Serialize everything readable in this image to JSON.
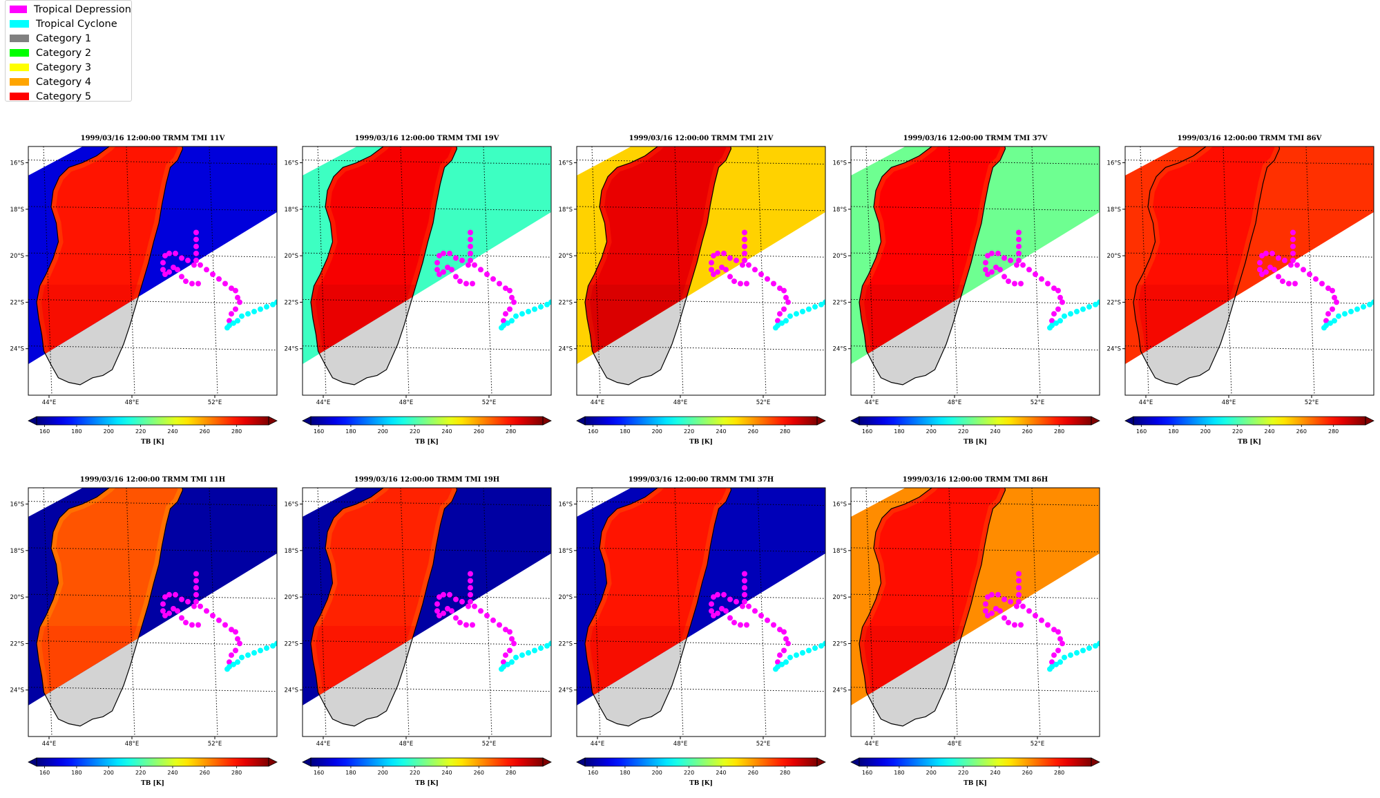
{
  "legend": {
    "items": [
      {
        "label": "Tropical Depression",
        "color": "#ff00ff"
      },
      {
        "label": "Tropical Cyclone",
        "color": "#00ffff"
      },
      {
        "label": "Category 1",
        "color": "#808080"
      },
      {
        "label": "Category 2",
        "color": "#00ff00"
      },
      {
        "label": "Category 3",
        "color": "#ffff00"
      },
      {
        "label": "Category 4",
        "color": "#ffa500"
      },
      {
        "label": "Category 5",
        "color": "#ff0000"
      }
    ]
  },
  "chart_data": [
    {
      "type": "heatmap",
      "title": "1999/03/16 12:00:00  TRMM TMI 11V",
      "channel": "11V",
      "ocean_tb": 168,
      "land_tb": 279,
      "colorbar_label": "TB [K]"
    },
    {
      "type": "heatmap",
      "title": "1999/03/16 12:00:00  TRMM TMI 19V",
      "channel": "19V",
      "ocean_tb": 218,
      "land_tb": 283,
      "colorbar_label": "TB [K]"
    },
    {
      "type": "heatmap",
      "title": "1999/03/16 12:00:00  TRMM TMI 21V",
      "channel": "21V",
      "ocean_tb": 252,
      "land_tb": 285,
      "colorbar_label": "TB [K]"
    },
    {
      "type": "heatmap",
      "title": "1999/03/16 12:00:00  TRMM TMI 37V",
      "channel": "37V",
      "ocean_tb": 225,
      "land_tb": 282,
      "colorbar_label": "TB [K]"
    },
    {
      "type": "heatmap",
      "title": "1999/03/16 12:00:00  TRMM TMI 86V",
      "channel": "86V",
      "ocean_tb": 275,
      "land_tb": 280,
      "colorbar_label": "TB [K]"
    },
    {
      "type": "heatmap",
      "title": "1999/03/16 12:00:00  TRMM TMI 11H",
      "channel": "11H",
      "ocean_tb": 160,
      "land_tb": 270,
      "colorbar_label": "TB [K]"
    },
    {
      "type": "heatmap",
      "title": "1999/03/16 12:00:00  TRMM TMI 19H",
      "channel": "19H",
      "ocean_tb": 160,
      "land_tb": 277,
      "colorbar_label": "TB [K]"
    },
    {
      "type": "heatmap",
      "title": "1999/03/16 12:00:00  TRMM TMI 37H",
      "channel": "37H",
      "ocean_tb": 163,
      "land_tb": 279,
      "colorbar_label": "TB [K]"
    },
    {
      "type": "heatmap",
      "title": "1999/03/16 12:00:00  TRMM TMI 86H",
      "channel": "86H",
      "ocean_tb": 262,
      "land_tb": 280,
      "colorbar_label": "TB [K]"
    }
  ],
  "axes": {
    "lon_range": [
      43.0,
      55.0
    ],
    "lat_range": [
      -26.0,
      -15.3
    ],
    "lon_ticks": [
      "44°E",
      "48°E",
      "52°E"
    ],
    "lon_tick_values": [
      44,
      48,
      52
    ],
    "lat_ticks": [
      "16°S",
      "18°S",
      "20°S",
      "22°S",
      "24°S"
    ],
    "lat_tick_values": [
      -16,
      -18,
      -20,
      -22,
      -24
    ],
    "grid": true
  },
  "colorbar": {
    "ticks": [
      "160",
      "180",
      "200",
      "220",
      "240",
      "260",
      "280"
    ],
    "tick_values": [
      160,
      180,
      200,
      220,
      240,
      260,
      280
    ],
    "range": [
      155,
      300
    ],
    "label": "TB [K]"
  },
  "track": {
    "depression_color": "#ff00ff",
    "cyclone_color": "#00ffff",
    "depression": [
      [
        51.1,
        -19.0
      ],
      [
        51.1,
        -19.3
      ],
      [
        51.1,
        -19.6
      ],
      [
        51.1,
        -19.9
      ],
      [
        51.1,
        -20.2
      ],
      [
        50.7,
        -20.2
      ],
      [
        50.4,
        -20.1
      ],
      [
        50.1,
        -19.9
      ],
      [
        49.8,
        -19.9
      ],
      [
        49.6,
        -20.0
      ],
      [
        49.5,
        -20.3
      ],
      [
        49.5,
        -20.6
      ],
      [
        49.6,
        -20.8
      ],
      [
        49.8,
        -20.7
      ],
      [
        50.0,
        -20.5
      ],
      [
        50.2,
        -20.6
      ],
      [
        50.4,
        -20.9
      ],
      [
        50.6,
        -21.1
      ],
      [
        50.9,
        -21.2
      ],
      [
        51.2,
        -21.2
      ],
      [
        51.0,
        -20.4
      ],
      [
        51.3,
        -20.4
      ],
      [
        51.6,
        -20.6
      ],
      [
        51.9,
        -20.8
      ],
      [
        52.2,
        -21.0
      ],
      [
        52.5,
        -21.2
      ],
      [
        52.8,
        -21.4
      ],
      [
        53.0,
        -21.5
      ],
      [
        53.1,
        -21.8
      ],
      [
        53.2,
        -22.0
      ],
      [
        53.0,
        -22.3
      ],
      [
        52.8,
        -22.5
      ],
      [
        52.7,
        -22.8
      ]
    ],
    "cyclone": [
      [
        52.6,
        -23.1
      ],
      [
        52.7,
        -23.0
      ],
      [
        52.9,
        -22.9
      ],
      [
        53.1,
        -22.8
      ],
      [
        53.3,
        -22.6
      ],
      [
        53.6,
        -22.5
      ],
      [
        53.9,
        -22.4
      ],
      [
        54.2,
        -22.3
      ],
      [
        54.5,
        -22.2
      ],
      [
        54.8,
        -22.1
      ],
      [
        55.0,
        -22.0
      ]
    ]
  }
}
